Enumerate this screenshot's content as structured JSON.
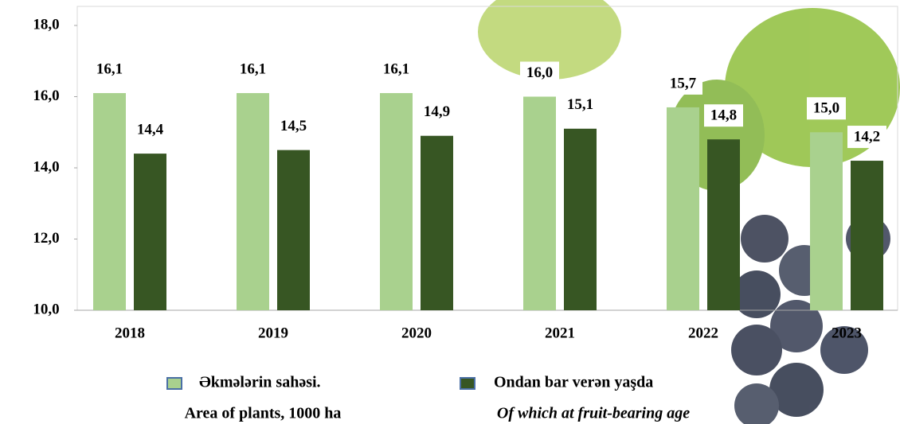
{
  "chart_data": {
    "type": "bar",
    "categories": [
      "2018",
      "2019",
      "2020",
      "2021",
      "2022",
      "2023"
    ],
    "series": [
      {
        "name": "Əkmələrin sahəsi.",
        "name_en": "Area of plants, 1000 ha",
        "color": "#a9d18e",
        "values": [
          16.1,
          16.1,
          16.1,
          16.0,
          15.7,
          15.0
        ],
        "value_labels": [
          "16,1",
          "16,1",
          "16,1",
          "16,0",
          "15,7",
          "15,0"
        ]
      },
      {
        "name": "Ondan bar verən yaşda",
        "name_en": "Of which at fruit-bearing age",
        "color": "#375623",
        "values": [
          14.4,
          14.5,
          14.9,
          15.1,
          14.8,
          14.2
        ],
        "value_labels": [
          "14,4",
          "14,5",
          "14,9",
          "15,1",
          "14,8",
          "14,2"
        ]
      }
    ],
    "ylim": [
      10,
      18
    ],
    "yticks": [
      {
        "value": 10,
        "label": "10,0"
      },
      {
        "value": 12,
        "label": "12,0"
      },
      {
        "value": 14,
        "label": "14,0"
      },
      {
        "value": 16,
        "label": "16,0"
      },
      {
        "value": 18,
        "label": "18,0"
      }
    ]
  }
}
